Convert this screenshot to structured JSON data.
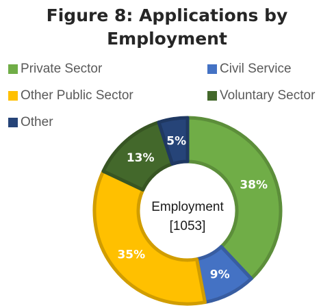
{
  "chart_data": {
    "type": "pie",
    "title": "Figure 8: Applications by Employment",
    "title_lines": [
      "Figure 8: Applications by",
      "Employment"
    ],
    "center_label": "Employment",
    "center_value": "[1053]",
    "legend_position": "top",
    "slices": [
      {
        "name": "Private Sector",
        "value": 38,
        "label": "38%",
        "color": "#70ad47"
      },
      {
        "name": "Civil Service",
        "value": 9,
        "label": "9%",
        "color": "#4472c4"
      },
      {
        "name": "Other Public Sector",
        "value": 35,
        "label": "35%",
        "color": "#ffc000"
      },
      {
        "name": "Voluntary Sector",
        "value": 13,
        "label": "13%",
        "color": "#43682b"
      },
      {
        "name": "Other",
        "value": 5,
        "label": "5%",
        "color": "#264478"
      }
    ]
  }
}
